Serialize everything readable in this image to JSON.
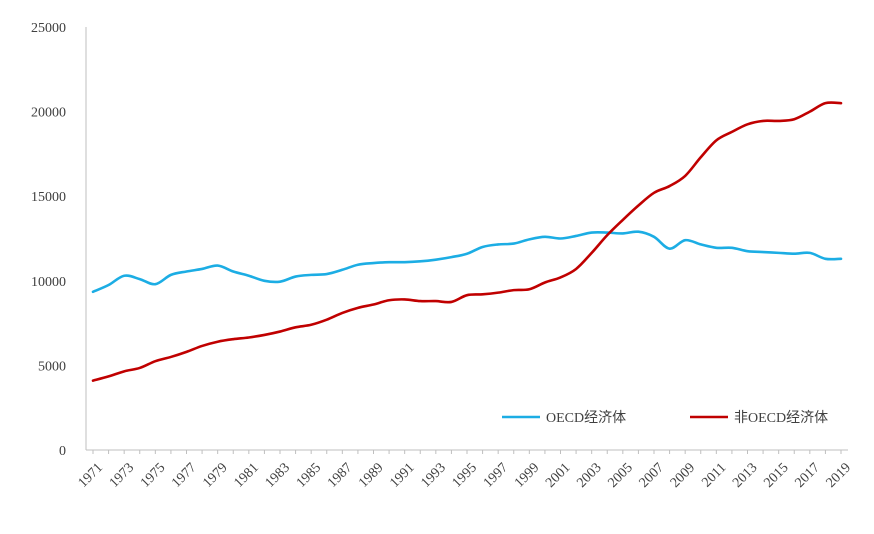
{
  "chart_data": {
    "type": "line",
    "title": "",
    "xlabel": "",
    "ylabel": "",
    "x": [
      1971,
      1972,
      1973,
      1974,
      1975,
      1976,
      1977,
      1978,
      1979,
      1980,
      1981,
      1982,
      1983,
      1984,
      1985,
      1986,
      1987,
      1988,
      1989,
      1990,
      1991,
      1992,
      1993,
      1994,
      1995,
      1996,
      1997,
      1998,
      1999,
      2000,
      2001,
      2002,
      2003,
      2004,
      2005,
      2006,
      2007,
      2008,
      2009,
      2010,
      2011,
      2012,
      2013,
      2014,
      2015,
      2016,
      2017,
      2018,
      2019
    ],
    "x_tick_labels": [
      "1971",
      "1973",
      "1975",
      "1977",
      "1979",
      "1981",
      "1983",
      "1985",
      "1987",
      "1989",
      "1991",
      "1993",
      "1995",
      "1997",
      "1999",
      "2001",
      "2003",
      "2005",
      "2007",
      "2009",
      "2011",
      "2013",
      "2015",
      "2017",
      "2019"
    ],
    "ylim": [
      0,
      25000
    ],
    "y_ticks": [
      "0",
      "5000",
      "10000",
      "15000",
      "20000",
      "25000"
    ],
    "grid": false,
    "legend_position": "bottom-right",
    "series": [
      {
        "name": "OECD经济体",
        "color": "#1CADE4",
        "values": [
          9350,
          9750,
          10300,
          10100,
          9800,
          10350,
          10550,
          10700,
          10900,
          10550,
          10300,
          10000,
          9950,
          10250,
          10350,
          10400,
          10650,
          10950,
          11050,
          11100,
          11100,
          11150,
          11250,
          11400,
          11600,
          12000,
          12150,
          12200,
          12450,
          12600,
          12500,
          12650,
          12850,
          12850,
          12800,
          12900,
          12600,
          11900,
          12400,
          12150,
          11950,
          11950,
          11750,
          11700,
          11650,
          11600,
          11650,
          11300,
          11300
        ]
      },
      {
        "name": "非OECD经济体",
        "color": "#C00000",
        "values": [
          4100,
          4350,
          4650,
          4850,
          5250,
          5500,
          5800,
          6150,
          6400,
          6550,
          6650,
          6800,
          7000,
          7250,
          7400,
          7700,
          8100,
          8400,
          8600,
          8850,
          8900,
          8800,
          8800,
          8750,
          9150,
          9200,
          9300,
          9450,
          9500,
          9900,
          10200,
          10700,
          11650,
          12700,
          13600,
          14450,
          15200,
          15600,
          16200,
          17300,
          18300,
          18800,
          19250,
          19450,
          19450,
          19550,
          20000,
          20500,
          20500
        ]
      }
    ]
  }
}
